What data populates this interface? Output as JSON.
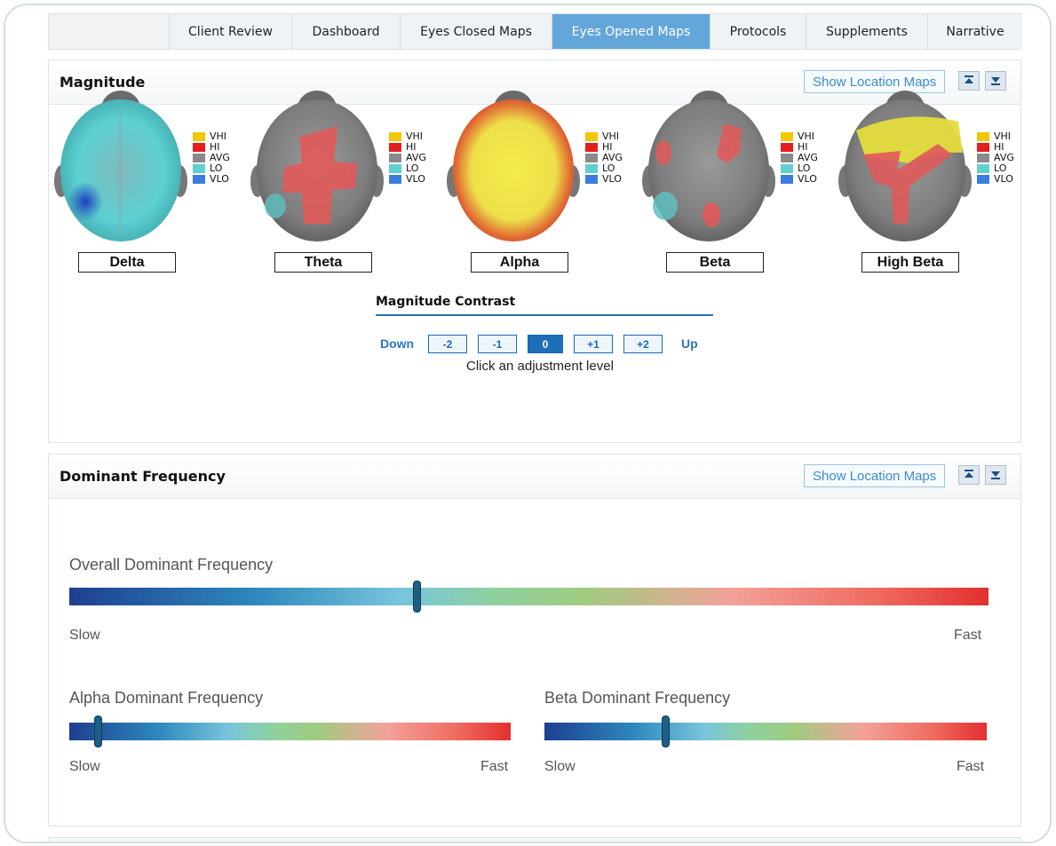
{
  "tabs": [
    "Client Review",
    "Dashboard",
    "Eyes Closed Maps",
    "Eyes Opened Maps",
    "Protocols",
    "Supplements",
    "Narrative"
  ],
  "active_tab": "Eyes Opened Maps",
  "magnitude": {
    "title": "Magnitude",
    "location_button": "Show Location Maps",
    "legend": [
      "VHI",
      "HI",
      "AVG",
      "LO",
      "VLO"
    ],
    "legend_colors": [
      "#f3c700",
      "#e41f1f",
      "#8a8a8a",
      "#5fcfd0",
      "#3a7de0"
    ],
    "bands": [
      "Delta",
      "Theta",
      "Alpha",
      "Beta",
      "High Beta"
    ],
    "contrast": {
      "title": "Magnitude Contrast",
      "down_label": "Down",
      "up_label": "Up",
      "levels": [
        "-2",
        "-1",
        "0",
        "+1",
        "+2"
      ],
      "selected": "0",
      "hint": "Click an adjustment level"
    }
  },
  "dominant_frequency": {
    "title": "Dominant Frequency",
    "location_button": "Show Location Maps",
    "slow_label": "Slow",
    "fast_label": "Fast",
    "overall": {
      "label": "Overall Dominant Frequency",
      "slow": "Slow",
      "fast": "Fast",
      "position": 0.378
    },
    "alpha": {
      "label": "Alpha Dominant Frequency",
      "slow": "Slow",
      "fast": "Fast",
      "position": 0.064
    },
    "beta": {
      "label": "Beta Dominant Frequency",
      "slow": "Slow",
      "fast": "Fast",
      "position": 0.274
    }
  }
}
